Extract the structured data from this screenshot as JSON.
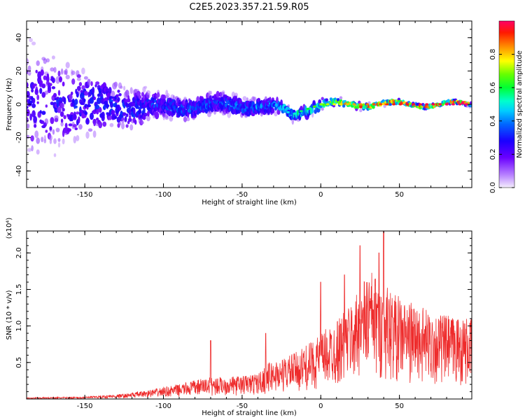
{
  "title": "C2E5.2023.357.21.59.R05",
  "colors": {
    "snr_line": "#ee2b2b",
    "axis": "#000000",
    "colormap": [
      "#f2ecfb",
      "#8800ff",
      "#3300ff",
      "#0088ff",
      "#00ffff",
      "#00ff55",
      "#66ff00",
      "#ffff00",
      "#ff8800",
      "#ff0000",
      "#ff0080"
    ]
  },
  "chart_data": [
    {
      "type": "heatmap",
      "xlabel": "Height of straight line (km)",
      "ylabel": "Frequency (Hz)",
      "xlim": [
        -187,
        96
      ],
      "ylim": [
        -50,
        50
      ],
      "xticks": [
        -150,
        -100,
        -50,
        0,
        50
      ],
      "yticks": [
        -40,
        -20,
        0,
        20,
        40
      ],
      "colorbar": {
        "label": "Normalized spectral amplitude",
        "range": [
          0.0,
          1.0
        ],
        "ticks": [
          "0.0",
          "0.2",
          "0.4",
          "0.6",
          "0.8"
        ]
      },
      "ridge": {
        "description_values": "amplitude near 0 Hz rising from ~0.2 at -187 km to ~1.0 above 30 km; spread narrowing from ~50 Hz to ~1 Hz",
        "x": [
          -187,
          -150,
          -100,
          -50,
          -25,
          -18,
          0,
          25,
          50,
          96
        ],
        "center_hz": [
          0,
          0,
          -2,
          0,
          -3,
          -6,
          0,
          0,
          0,
          0
        ],
        "spread_hz": [
          50,
          30,
          10,
          8,
          6,
          6,
          4,
          3,
          2,
          1.5
        ],
        "peak_amplitude": [
          0.25,
          0.3,
          0.35,
          0.4,
          0.45,
          0.5,
          0.7,
          0.85,
          0.95,
          1.0
        ]
      }
    },
    {
      "type": "line",
      "xlabel": "Height of straight line (km)",
      "ylabel": "SNR (10 * v/v)",
      "scale_label": "(x10⁴)",
      "xlim": [
        -187,
        96
      ],
      "ylim": [
        0,
        2.3
      ],
      "xticks": [
        -150,
        -100,
        -50,
        0,
        50
      ],
      "yticks": [
        "0.5",
        "1.0",
        "1.5",
        "2.0"
      ],
      "series": [
        {
          "values_in": "x10^4",
          "envelope_x": [
            -187,
            -150,
            -125,
            -110,
            -100,
            -90,
            -80,
            -70,
            -60,
            -50,
            -40,
            -33,
            -25,
            -15,
            -5,
            5,
            15,
            25,
            30,
            35,
            40,
            50,
            60,
            70,
            80,
            96
          ],
          "envelope_y": [
            0.02,
            0.03,
            0.07,
            0.12,
            0.16,
            0.2,
            0.26,
            0.3,
            0.3,
            0.32,
            0.35,
            0.5,
            0.55,
            0.65,
            0.8,
            1.0,
            1.2,
            1.5,
            1.8,
            1.7,
            1.6,
            1.4,
            1.3,
            1.2,
            1.15,
            1.1
          ],
          "peaks": [
            {
              "x": 25,
              "y": 2.1
            },
            {
              "x": 37,
              "y": 2.0
            },
            {
              "x": 40,
              "y": 2.3
            },
            {
              "x": 15,
              "y": 1.7
            },
            {
              "x": 0,
              "y": 1.6
            },
            {
              "x": -35,
              "y": 0.9
            },
            {
              "x": -70,
              "y": 0.8
            }
          ]
        }
      ]
    }
  ]
}
